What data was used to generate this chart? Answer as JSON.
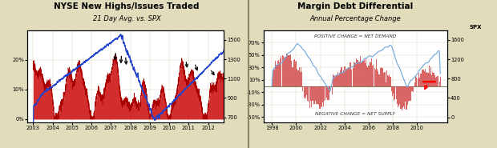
{
  "chart1": {
    "title": "NYSE New Highs/Issues Traded",
    "subtitle": "21 Day Avg. vs. SPX",
    "bg_color": "#e8e4cc",
    "plot_bg": "#ffffff",
    "x_ticks": [
      2003,
      2004,
      2005,
      2006,
      2007,
      2008,
      2009,
      2010,
      2011,
      2012
    ],
    "yleft_ticks": [
      0,
      10,
      20
    ],
    "yleft_labels": [
      "0%",
      "10%",
      "20%"
    ],
    "yleft_range": [
      -1,
      30
    ],
    "yright_ticks": [
      700,
      900,
      1100,
      1300,
      1500
    ],
    "yright_range": [
      650,
      1600
    ],
    "xlim": [
      2002.7,
      2012.8
    ]
  },
  "chart2": {
    "title": "Margin Debt Differential",
    "subtitle": "Annual Percentage Change",
    "label_top": "POSITIVE CHANGE = NET DEMAND",
    "label_bottom": "NEGATIVE CHANGE = NET SUPPLY",
    "spx_label": "SPX",
    "bg_color": "#e8e4cc",
    "plot_bg": "#ffffff",
    "x_ticks": [
      1998,
      2000,
      2002,
      2004,
      2006,
      2008,
      2010
    ],
    "yleft_ticks": [
      -50,
      -30,
      -10,
      10,
      30,
      50,
      70
    ],
    "yleft_labels": [
      "-50%",
      "-30%",
      "-10%",
      "10%",
      "30%",
      "50%",
      "70%"
    ],
    "yleft_range": [
      -58,
      90
    ],
    "yright_ticks": [
      0,
      400,
      800,
      1200,
      1600
    ],
    "yright_range": [
      -100,
      1800
    ],
    "xlim": [
      1997.3,
      2012.5
    ]
  },
  "fig_bg": "#e0dcbc",
  "divider_color": "#888866"
}
